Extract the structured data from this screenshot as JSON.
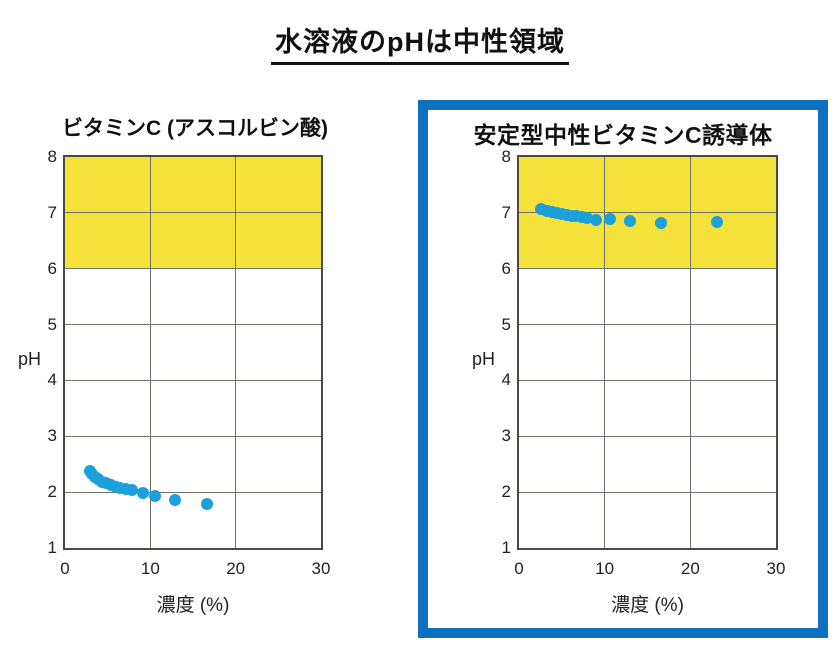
{
  "page": {
    "title": "水溶液のpHは中性領域"
  },
  "colors": {
    "marker": "#1ca0dc",
    "band": "#f4e23b",
    "box_border": "#0d70c2",
    "grid": "#71716a"
  },
  "chart_data": [
    {
      "type": "scatter",
      "title": "ビタミンC (アスコルビン酸)",
      "xlabel": "濃度 (%)",
      "ylabel": "pH",
      "xlim": [
        0,
        30
      ],
      "ylim": [
        1,
        8
      ],
      "xticks": [
        0,
        10,
        20,
        30
      ],
      "yticks": [
        1,
        2,
        3,
        4,
        5,
        6,
        7,
        8
      ],
      "grid": true,
      "highlight_band": {
        "from": 6,
        "to": 8,
        "color": "#f4e23b",
        "meaning": "neutral pH region"
      },
      "marker_color": "#1ca0dc",
      "points": [
        [
          2.9,
          2.37
        ],
        [
          3.2,
          2.32
        ],
        [
          3.5,
          2.28
        ],
        [
          3.9,
          2.23
        ],
        [
          4.3,
          2.19
        ],
        [
          4.8,
          2.16
        ],
        [
          5.4,
          2.12
        ],
        [
          6.0,
          2.1
        ],
        [
          6.5,
          2.07
        ],
        [
          7.1,
          2.05
        ],
        [
          7.9,
          2.03
        ],
        [
          9.1,
          1.98
        ],
        [
          10.5,
          1.93
        ],
        [
          12.9,
          1.86
        ],
        [
          16.6,
          1.79
        ]
      ]
    },
    {
      "type": "scatter",
      "title": "安定型中性ビタミンC誘導体",
      "xlabel": "濃度 (%)",
      "ylabel": "pH",
      "xlim": [
        0,
        30
      ],
      "ylim": [
        1,
        8
      ],
      "xticks": [
        0,
        10,
        20,
        30
      ],
      "yticks": [
        1,
        2,
        3,
        4,
        5,
        6,
        7,
        8
      ],
      "grid": true,
      "highlight_band": {
        "from": 6,
        "to": 8,
        "color": "#f4e23b",
        "meaning": "neutral pH region"
      },
      "marker_color": "#1ca0dc",
      "points": [
        [
          2.6,
          7.07
        ],
        [
          3.3,
          7.04
        ],
        [
          3.8,
          7.02
        ],
        [
          4.4,
          7.0
        ],
        [
          5.0,
          6.98
        ],
        [
          5.6,
          6.97
        ],
        [
          6.2,
          6.95
        ],
        [
          6.7,
          6.94
        ],
        [
          7.3,
          6.93
        ],
        [
          7.9,
          6.91
        ],
        [
          9.0,
          6.88
        ],
        [
          10.6,
          6.89
        ],
        [
          13.0,
          6.86
        ],
        [
          16.6,
          6.82
        ],
        [
          23.1,
          6.84
        ]
      ]
    }
  ]
}
